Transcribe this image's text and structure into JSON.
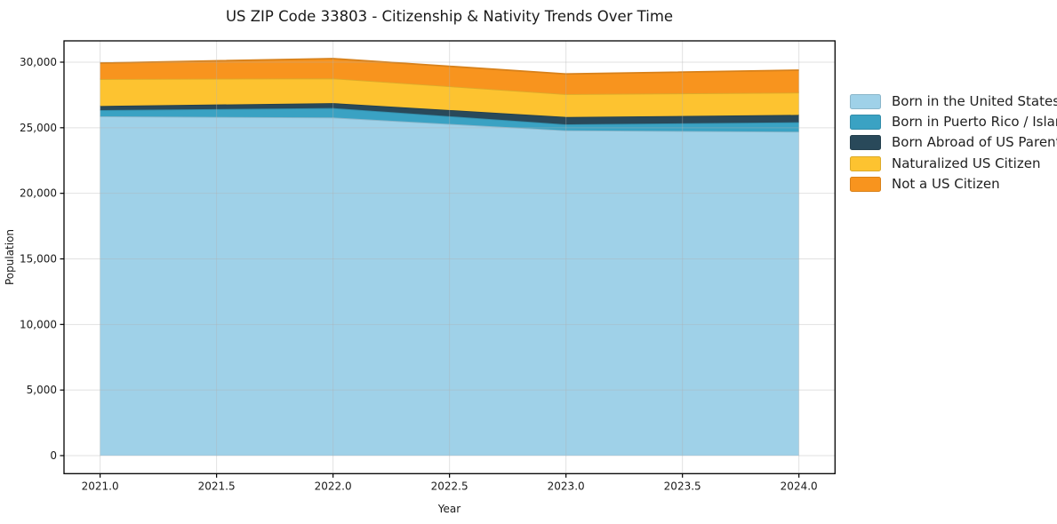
{
  "chart_data": {
    "type": "area",
    "stacked": true,
    "title": "US ZIP Code 33803 - Citizenship & Nativity Trends Over Time",
    "xlabel": "Year",
    "ylabel": "Population",
    "x": [
      2021,
      2022,
      2023,
      2024
    ],
    "series": [
      {
        "name": "Born in the United States",
        "values": [
          25870,
          25780,
          24800,
          24700
        ],
        "color": "#9fd1e8"
      },
      {
        "name": "Born in Puerto Rico / Islands",
        "values": [
          470,
          720,
          460,
          720
        ],
        "color": "#3aa2c3"
      },
      {
        "name": "Born Abroad of US Parent(s)",
        "values": [
          320,
          380,
          560,
          560
        ],
        "color": "#29495a"
      },
      {
        "name": "Naturalized US Citizen",
        "values": [
          2050,
          1880,
          1740,
          1700
        ],
        "color": "#fdc330"
      },
      {
        "name": "Not a US Citizen",
        "values": [
          1220,
          1510,
          1540,
          1710
        ],
        "color": "#f8941e"
      }
    ],
    "xlim": [
      2020.845,
      2024.155
    ],
    "ylim": [
      -1375,
      31625
    ],
    "x_ticks": {
      "values": [
        2021.0,
        2021.5,
        2022.0,
        2022.5,
        2023.0,
        2023.5,
        2024.0
      ],
      "labels": [
        "2021.0",
        "2021.5",
        "2022.0",
        "2022.5",
        "2023.0",
        "2023.5",
        "2024.0"
      ]
    },
    "y_ticks": {
      "values": [
        0,
        5000,
        10000,
        15000,
        20000,
        25000,
        30000
      ],
      "labels": [
        "0",
        "5,000",
        "10,000",
        "15,000",
        "20,000",
        "25,000",
        "30,000"
      ]
    },
    "grid": true,
    "grid_color": "#b0b0b0",
    "spine_color": "#000000",
    "text_color": "#1a1a1a",
    "legend_position": "right"
  }
}
